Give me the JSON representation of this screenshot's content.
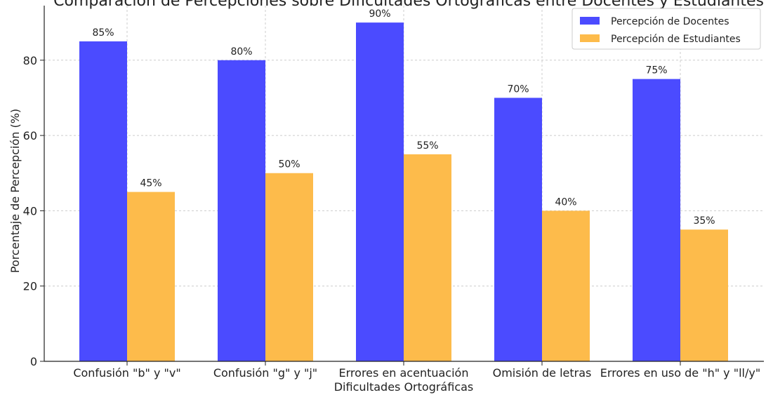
{
  "chart_data": {
    "type": "bar",
    "title": "Comparación de Percepciones sobre Dificultades Ortográficas entre Docentes y Estudiantes",
    "xlabel": "Dificultades Ortográficas",
    "ylabel": "Porcentaje de Percepción (%)",
    "categories": [
      "Confusión \"b\" y \"v\"",
      "Confusión \"g\" y \"j\"",
      "Errores en acentuación",
      "Omisión de letras",
      "Errores en uso de \"h\" y \"ll/y\""
    ],
    "series": [
      {
        "name": "Percepción de Docentes",
        "color": "#4b4bff",
        "values": [
          85,
          80,
          90,
          70,
          75
        ],
        "labels": [
          "85%",
          "80%",
          "90%",
          "70%",
          "75%"
        ]
      },
      {
        "name": "Percepción de Estudiantes",
        "color": "#fdbb4b",
        "values": [
          45,
          50,
          55,
          40,
          35
        ],
        "labels": [
          "45%",
          "50%",
          "55%",
          "40%",
          "35%"
        ]
      }
    ],
    "ylim": [
      0,
      94.5
    ],
    "yticks": [
      0,
      20,
      40,
      60,
      80
    ],
    "grid": true,
    "legend_position": "top-right"
  }
}
